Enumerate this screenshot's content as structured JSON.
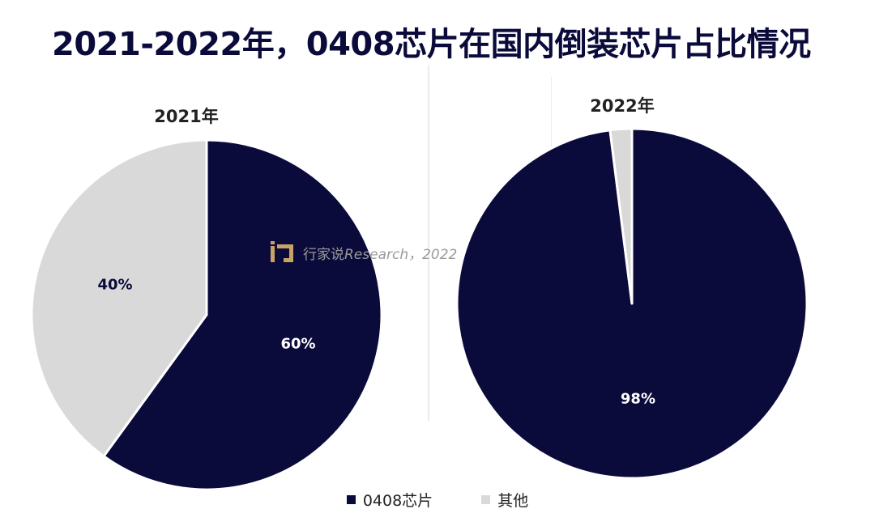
{
  "colors": {
    "primary": "#0b0b3b",
    "other": "#d9d9d9",
    "title": "#0b0b3b"
  },
  "watermark": {
    "cjk": "行家说",
    "latin": "Research，2022",
    "logo_color": "#c8a464"
  },
  "chart_data": [
    {
      "type": "pie",
      "title": "2021年",
      "slices": [
        {
          "label": "0408芯片",
          "value": 60,
          "display": "60%"
        },
        {
          "label": "其他",
          "value": 40,
          "display": "40%"
        }
      ],
      "legend": [
        "0408芯片",
        "其他"
      ],
      "legend_placement": "bottom"
    },
    {
      "type": "pie",
      "title": "2022年",
      "slices": [
        {
          "label": "0408芯片",
          "value": 98,
          "display": "98%"
        },
        {
          "label": "其他",
          "value": 2,
          "display": ""
        }
      ],
      "legend": [
        "0408芯片",
        "其他"
      ],
      "legend_placement": "bottom"
    }
  ],
  "title": "2021-2022年，0408芯片在国内倒装芯片占比情况",
  "legend": [
    {
      "label": "0408芯片",
      "color": "#0b0b3b"
    },
    {
      "label": "其他",
      "color": "#d9d9d9"
    }
  ]
}
